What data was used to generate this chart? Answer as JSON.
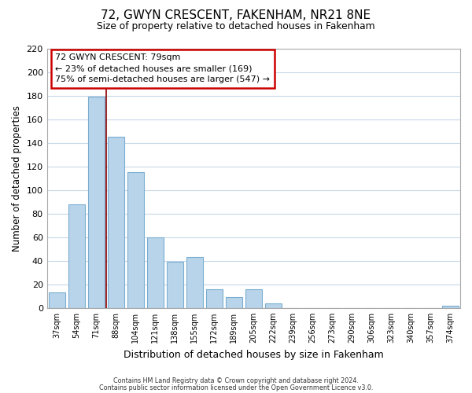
{
  "title": "72, GWYN CRESCENT, FAKENHAM, NR21 8NE",
  "subtitle": "Size of property relative to detached houses in Fakenham",
  "xlabel": "Distribution of detached houses by size in Fakenham",
  "ylabel": "Number of detached properties",
  "bar_labels": [
    "37sqm",
    "54sqm",
    "71sqm",
    "88sqm",
    "104sqm",
    "121sqm",
    "138sqm",
    "155sqm",
    "172sqm",
    "189sqm",
    "205sqm",
    "222sqm",
    "239sqm",
    "256sqm",
    "273sqm",
    "290sqm",
    "306sqm",
    "323sqm",
    "340sqm",
    "357sqm",
    "374sqm"
  ],
  "bar_values": [
    13,
    88,
    179,
    145,
    115,
    60,
    39,
    43,
    16,
    9,
    16,
    4,
    0,
    0,
    0,
    0,
    0,
    0,
    0,
    0,
    2
  ],
  "bar_color": "#b8d4ea",
  "bar_edge_color": "#7aaed0",
  "marker_line_color": "#8b0000",
  "ylim": [
    0,
    220
  ],
  "yticks": [
    0,
    20,
    40,
    60,
    80,
    100,
    120,
    140,
    160,
    180,
    200,
    220
  ],
  "annotation_title": "72 GWYN CRESCENT: 79sqm",
  "annotation_line1": "← 23% of detached houses are smaller (169)",
  "annotation_line2": "75% of semi-detached houses are larger (547) →",
  "annotation_box_color": "#ffffff",
  "annotation_box_edge": "#cc0000",
  "footer_line1": "Contains HM Land Registry data © Crown copyright and database right 2024.",
  "footer_line2": "Contains public sector information licensed under the Open Government Licence v3.0.",
  "background_color": "#ffffff",
  "grid_color": "#c8d8e8"
}
